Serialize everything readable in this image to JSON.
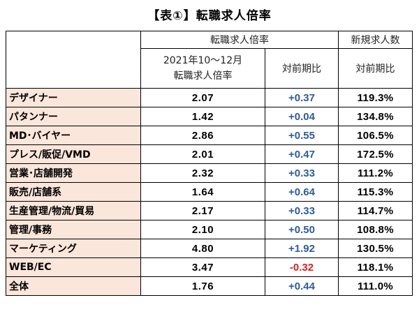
{
  "title": "【表①】転職求人倍率",
  "header": {
    "group_label": "転職求人倍率",
    "new_label": "新規求人数",
    "period_line1": "2021年10～12月",
    "period_line2": "転職求人倍率",
    "yoy_label": "対前期比",
    "new_yoy_label": "対前期比"
  },
  "rows": [
    {
      "category": "デザイナー",
      "ratio": "2.07",
      "change": "+0.37",
      "new_jobs": "119.3%"
    },
    {
      "category": "パタンナー",
      "ratio": "1.42",
      "change": "+0.04",
      "new_jobs": "134.8%"
    },
    {
      "category": "MD･バイヤー",
      "ratio": "2.86",
      "change": "+0.55",
      "new_jobs": "106.5%"
    },
    {
      "category": "プレス/販促/VMD",
      "ratio": "2.01",
      "change": "+0.47",
      "new_jobs": "172.5%"
    },
    {
      "category": "営業･店舗開発",
      "ratio": "2.32",
      "change": "+0.33",
      "new_jobs": "111.2%"
    },
    {
      "category": "販売/店舗系",
      "ratio": "1.64",
      "change": "+0.64",
      "new_jobs": "115.3%"
    },
    {
      "category": "生産管理/物流/貿易",
      "ratio": "2.17",
      "change": "+0.33",
      "new_jobs": "114.7%"
    },
    {
      "category": "管理/事務",
      "ratio": "2.10",
      "change": "+0.50",
      "new_jobs": "108.8%"
    },
    {
      "category": "マーケティング",
      "ratio": "4.80",
      "change": "+1.92",
      "new_jobs": "130.5%"
    },
    {
      "category": "WEB/EC",
      "ratio": "3.47",
      "change": "-0.32",
      "new_jobs": "118.1%"
    },
    {
      "category": "全体",
      "ratio": "1.76",
      "change": "+0.44",
      "new_jobs": "111.0%"
    }
  ],
  "colors": {
    "category_bg": "#fbe6db",
    "positive_change": "#2e5b9a",
    "negative_change": "#e11d1d"
  }
}
